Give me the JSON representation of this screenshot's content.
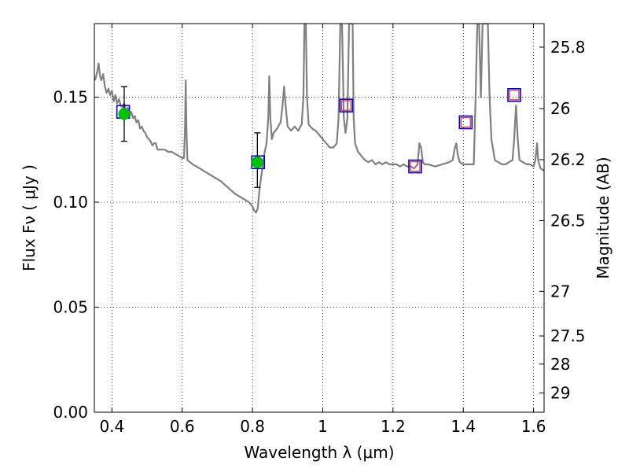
{
  "chart_data": {
    "type": "line",
    "xlabel": "Wavelength  λ (μm)",
    "ylabel": "Flux  Fν  ( μJy )",
    "y2label": "Magnitude (AB)",
    "xlim": [
      0.35,
      1.63
    ],
    "ylim": [
      0.0,
      0.185
    ],
    "grid": true,
    "x_ticks": [
      {
        "value": 0.4,
        "label": "0.4"
      },
      {
        "value": 0.6,
        "label": "0.6"
      },
      {
        "value": 0.8,
        "label": "0.8"
      },
      {
        "value": 1.0,
        "label": "1"
      },
      {
        "value": 1.2,
        "label": "1.2"
      },
      {
        "value": 1.4,
        "label": "1.4"
      },
      {
        "value": 1.6,
        "label": "1.6"
      }
    ],
    "y_ticks": [
      {
        "value": 0.0,
        "label": "0.00"
      },
      {
        "value": 0.05,
        "label": "0.05"
      },
      {
        "value": 0.1,
        "label": "0.10"
      },
      {
        "value": 0.15,
        "label": "0.15"
      }
    ],
    "y2_ticks": [
      {
        "value": 25.8,
        "label": "25.8"
      },
      {
        "value": 26.0,
        "label": "26"
      },
      {
        "value": 26.2,
        "label": "26.2"
      },
      {
        "value": 26.5,
        "label": "26.5"
      },
      {
        "value": 27.0,
        "label": "27"
      },
      {
        "value": 27.5,
        "label": "27.5"
      },
      {
        "value": 28.0,
        "label": "28"
      },
      {
        "value": 29.0,
        "label": "29"
      }
    ],
    "template_spectrum": {
      "color": "#808080",
      "points": [
        [
          0.352,
          0.158
        ],
        [
          0.358,
          0.162
        ],
        [
          0.362,
          0.166
        ],
        [
          0.366,
          0.16
        ],
        [
          0.37,
          0.158
        ],
        [
          0.375,
          0.161
        ],
        [
          0.38,
          0.155
        ],
        [
          0.385,
          0.152
        ],
        [
          0.39,
          0.154
        ],
        [
          0.395,
          0.151
        ],
        [
          0.4,
          0.153
        ],
        [
          0.405,
          0.148
        ],
        [
          0.41,
          0.151
        ],
        [
          0.415,
          0.147
        ],
        [
          0.42,
          0.149
        ],
        [
          0.425,
          0.146
        ],
        [
          0.43,
          0.145
        ],
        [
          0.435,
          0.147
        ],
        [
          0.44,
          0.143
        ],
        [
          0.445,
          0.145
        ],
        [
          0.45,
          0.141
        ],
        [
          0.455,
          0.143
        ],
        [
          0.46,
          0.14
        ],
        [
          0.465,
          0.141
        ],
        [
          0.47,
          0.138
        ],
        [
          0.475,
          0.139
        ],
        [
          0.48,
          0.135
        ],
        [
          0.485,
          0.136
        ],
        [
          0.49,
          0.134
        ],
        [
          0.495,
          0.133
        ],
        [
          0.5,
          0.131
        ],
        [
          0.505,
          0.13
        ],
        [
          0.51,
          0.129
        ],
        [
          0.515,
          0.127
        ],
        [
          0.52,
          0.128
        ],
        [
          0.525,
          0.128
        ],
        [
          0.53,
          0.125
        ],
        [
          0.54,
          0.125
        ],
        [
          0.55,
          0.125
        ],
        [
          0.56,
          0.124
        ],
        [
          0.57,
          0.124
        ],
        [
          0.58,
          0.123
        ],
        [
          0.59,
          0.122
        ],
        [
          0.6,
          0.121
        ],
        [
          0.605,
          0.121
        ],
        [
          0.608,
          0.135
        ],
        [
          0.61,
          0.158
        ],
        [
          0.612,
          0.135
        ],
        [
          0.615,
          0.12
        ],
        [
          0.63,
          0.118
        ],
        [
          0.65,
          0.116
        ],
        [
          0.67,
          0.114
        ],
        [
          0.69,
          0.112
        ],
        [
          0.71,
          0.11
        ],
        [
          0.73,
          0.107
        ],
        [
          0.75,
          0.104
        ],
        [
          0.77,
          0.102
        ],
        [
          0.79,
          0.1
        ],
        [
          0.8,
          0.098
        ],
        [
          0.805,
          0.096
        ],
        [
          0.81,
          0.095
        ],
        [
          0.815,
          0.097
        ],
        [
          0.82,
          0.106
        ],
        [
          0.828,
          0.116
        ],
        [
          0.835,
          0.124
        ],
        [
          0.84,
          0.128
        ],
        [
          0.845,
          0.14
        ],
        [
          0.848,
          0.16
        ],
        [
          0.851,
          0.14
        ],
        [
          0.855,
          0.13
        ],
        [
          0.86,
          0.133
        ],
        [
          0.87,
          0.135
        ],
        [
          0.88,
          0.138
        ],
        [
          0.885,
          0.145
        ],
        [
          0.89,
          0.155
        ],
        [
          0.895,
          0.145
        ],
        [
          0.9,
          0.136
        ],
        [
          0.91,
          0.134
        ],
        [
          0.92,
          0.136
        ],
        [
          0.93,
          0.134
        ],
        [
          0.94,
          0.137
        ],
        [
          0.945,
          0.15
        ],
        [
          0.948,
          0.185
        ],
        [
          0.952,
          0.185
        ],
        [
          0.955,
          0.15
        ],
        [
          0.96,
          0.137
        ],
        [
          0.97,
          0.135
        ],
        [
          0.98,
          0.134
        ],
        [
          0.99,
          0.132
        ],
        [
          1.0,
          0.13
        ],
        [
          1.01,
          0.128
        ],
        [
          1.02,
          0.126
        ],
        [
          1.03,
          0.126
        ],
        [
          1.04,
          0.128
        ],
        [
          1.045,
          0.14
        ],
        [
          1.05,
          0.185
        ],
        [
          1.055,
          0.185
        ],
        [
          1.06,
          0.14
        ],
        [
          1.065,
          0.133
        ],
        [
          1.07,
          0.14
        ],
        [
          1.075,
          0.185
        ],
        [
          1.085,
          0.185
        ],
        [
          1.088,
          0.14
        ],
        [
          1.092,
          0.128
        ],
        [
          1.1,
          0.124
        ],
        [
          1.11,
          0.122
        ],
        [
          1.12,
          0.12
        ],
        [
          1.13,
          0.119
        ],
        [
          1.14,
          0.12
        ],
        [
          1.15,
          0.118
        ],
        [
          1.16,
          0.119
        ],
        [
          1.17,
          0.118
        ],
        [
          1.18,
          0.119
        ],
        [
          1.19,
          0.118
        ],
        [
          1.2,
          0.118
        ],
        [
          1.21,
          0.118
        ],
        [
          1.22,
          0.117
        ],
        [
          1.23,
          0.118
        ],
        [
          1.24,
          0.117
        ],
        [
          1.25,
          0.117
        ],
        [
          1.26,
          0.116
        ],
        [
          1.27,
          0.118
        ],
        [
          1.275,
          0.128
        ],
        [
          1.28,
          0.126
        ],
        [
          1.285,
          0.119
        ],
        [
          1.29,
          0.118
        ],
        [
          1.3,
          0.118
        ],
        [
          1.32,
          0.117
        ],
        [
          1.34,
          0.118
        ],
        [
          1.36,
          0.119
        ],
        [
          1.37,
          0.12
        ],
        [
          1.375,
          0.125
        ],
        [
          1.38,
          0.128
        ],
        [
          1.385,
          0.122
        ],
        [
          1.39,
          0.119
        ],
        [
          1.4,
          0.118
        ],
        [
          1.42,
          0.118
        ],
        [
          1.43,
          0.118
        ],
        [
          1.435,
          0.15
        ],
        [
          1.44,
          0.185
        ],
        [
          1.445,
          0.185
        ],
        [
          1.45,
          0.15
        ],
        [
          1.455,
          0.185
        ],
        [
          1.47,
          0.185
        ],
        [
          1.475,
          0.15
        ],
        [
          1.48,
          0.13
        ],
        [
          1.49,
          0.12
        ],
        [
          1.5,
          0.119
        ],
        [
          1.51,
          0.118
        ],
        [
          1.52,
          0.118
        ],
        [
          1.53,
          0.119
        ],
        [
          1.54,
          0.12
        ],
        [
          1.545,
          0.13
        ],
        [
          1.55,
          0.146
        ],
        [
          1.555,
          0.13
        ],
        [
          1.56,
          0.12
        ],
        [
          1.57,
          0.119
        ],
        [
          1.58,
          0.118
        ],
        [
          1.59,
          0.118
        ],
        [
          1.6,
          0.117
        ],
        [
          1.605,
          0.12
        ],
        [
          1.61,
          0.128
        ],
        [
          1.613,
          0.12
        ],
        [
          1.62,
          0.116
        ],
        [
          1.63,
          0.115
        ]
      ]
    },
    "model_boxes": [
      {
        "x": 0.432,
        "y": 0.143
      },
      {
        "x": 0.816,
        "y": 0.119
      },
      {
        "x": 1.067,
        "y": 0.146
      },
      {
        "x": 1.263,
        "y": 0.117
      },
      {
        "x": 1.407,
        "y": 0.138
      },
      {
        "x": 1.545,
        "y": 0.151
      }
    ],
    "observed_points": [
      {
        "x": 0.435,
        "y": 0.142,
        "err_low": 0.129,
        "err_high": 0.155
      },
      {
        "x": 0.814,
        "y": 0.119,
        "err_low": 0.107,
        "err_high": 0.133
      }
    ],
    "predicted_squares": [
      {
        "x": 1.067,
        "y": 0.146
      },
      {
        "x": 1.263,
        "y": 0.117
      },
      {
        "x": 1.407,
        "y": 0.138
      },
      {
        "x": 1.545,
        "y": 0.151
      }
    ],
    "colors": {
      "spectrum": "#808080",
      "model_box": "#0000dd",
      "observed": "#00c000",
      "predicted": "#e04040",
      "grid": "#000000",
      "axis": "#000000"
    }
  }
}
